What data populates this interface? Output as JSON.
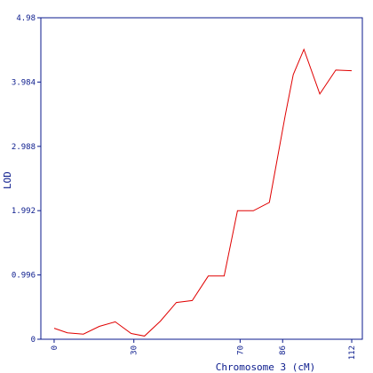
{
  "chart_data": {
    "type": "line",
    "title": "",
    "xlabel": "Chromosome 3 (cM)",
    "ylabel": "LOD",
    "xlim": [
      -5,
      116
    ],
    "ylim": [
      0,
      4.98
    ],
    "x_ticks": [
      0,
      30,
      70,
      86,
      112
    ],
    "x_tick_labels": [
      "0",
      "30",
      "70",
      "86",
      "112"
    ],
    "y_ticks": [
      0,
      0.996,
      1.992,
      2.988,
      3.984,
      4.98
    ],
    "y_tick_labels": [
      "0",
      "0.996",
      "1.992",
      "2.988",
      "3.984",
      "4.98"
    ],
    "grid": false,
    "legend": "none",
    "colors": {
      "axis": "#0a1a8c",
      "line": "#e00000",
      "background": "#ffffff"
    },
    "series": [
      {
        "color": "#e00000",
        "x": [
          0,
          5,
          11,
          17,
          23,
          29,
          34,
          40,
          46,
          52,
          58,
          64,
          69,
          75,
          81,
          87,
          90,
          94,
          100,
          106,
          112
        ],
        "y": [
          0.17,
          0.1,
          0.08,
          0.2,
          0.27,
          0.09,
          0.05,
          0.28,
          0.57,
          0.6,
          0.98,
          0.98,
          1.99,
          1.99,
          2.12,
          3.47,
          4.1,
          4.49,
          3.8,
          4.17,
          4.16
        ]
      }
    ]
  }
}
